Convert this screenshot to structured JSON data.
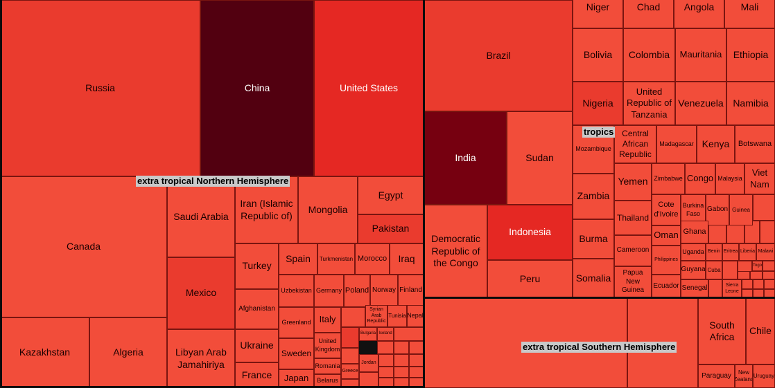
{
  "chart_data": {
    "type": "treemap",
    "groups": [
      {
        "name": "extra tropical Northern Hemisphere",
        "countries": [
          {
            "name": "Russia",
            "shade": 3
          },
          {
            "name": "China",
            "shade": 0
          },
          {
            "name": "United States",
            "shade": 2
          },
          {
            "name": "Canada",
            "shade": 4
          },
          {
            "name": "Saudi Arabia",
            "shade": 4
          },
          {
            "name": "Iran (Islamic Republic of)",
            "shade": 4
          },
          {
            "name": "Mongolia",
            "shade": 4
          },
          {
            "name": "Egypt",
            "shade": 4
          },
          {
            "name": "Pakistan",
            "shade": 3
          },
          {
            "name": "Mexico",
            "shade": 3
          },
          {
            "name": "Turkey",
            "shade": 4
          },
          {
            "name": "Spain",
            "shade": 4
          },
          {
            "name": "Turkmenistan",
            "shade": 4
          },
          {
            "name": "Morocco",
            "shade": 4
          },
          {
            "name": "Iraq",
            "shade": 4
          },
          {
            "name": "Afghanistan",
            "shade": 4
          },
          {
            "name": "Uzbekistan",
            "shade": 4
          },
          {
            "name": "Germany",
            "shade": 4
          },
          {
            "name": "Poland",
            "shade": 4
          },
          {
            "name": "Norway",
            "shade": 4
          },
          {
            "name": "Finland",
            "shade": 4
          },
          {
            "name": "Greenland",
            "shade": 4
          },
          {
            "name": "Italy",
            "shade": 4
          },
          {
            "name": "Syrian Arab Republic",
            "shade": 4
          },
          {
            "name": "Tunisia",
            "shade": 4
          },
          {
            "name": "Nepal",
            "shade": 4
          },
          {
            "name": "Kazakhstan",
            "shade": 4
          },
          {
            "name": "Algeria",
            "shade": 4
          },
          {
            "name": "Libyan Arab Jamahiriya",
            "shade": 4
          },
          {
            "name": "Ukraine",
            "shade": 4
          },
          {
            "name": "Sweden",
            "shade": 4
          },
          {
            "name": "United Kingdom",
            "shade": 4
          },
          {
            "name": "Bulgaria",
            "shade": 4
          },
          {
            "name": "Iceland",
            "shade": 4
          },
          {
            "name": "Romania",
            "shade": 4
          },
          {
            "name": "Jordan",
            "shade": 4
          },
          {
            "name": "Greece",
            "shade": 4
          },
          {
            "name": "France",
            "shade": 4
          },
          {
            "name": "Japan",
            "shade": 4
          },
          {
            "name": "Belarus",
            "shade": 4
          }
        ]
      },
      {
        "name": "tropics",
        "countries": [
          {
            "name": "Brazil",
            "shade": 3
          },
          {
            "name": "India",
            "shade": 1
          },
          {
            "name": "Sudan",
            "shade": 4
          },
          {
            "name": "Democratic Republic of the Congo",
            "shade": 4
          },
          {
            "name": "Indonesia",
            "shade": 2
          },
          {
            "name": "Peru",
            "shade": 4
          },
          {
            "name": "Niger",
            "shade": 4
          },
          {
            "name": "Chad",
            "shade": 4
          },
          {
            "name": "Angola",
            "shade": 4
          },
          {
            "name": "Mali",
            "shade": 4
          },
          {
            "name": "Bolivia",
            "shade": 4
          },
          {
            "name": "Colombia",
            "shade": 4
          },
          {
            "name": "Mauritania",
            "shade": 4
          },
          {
            "name": "Ethiopia",
            "shade": 4
          },
          {
            "name": "Nigeria",
            "shade": 3
          },
          {
            "name": "United Republic of Tanzania",
            "shade": 4
          },
          {
            "name": "Venezuela",
            "shade": 4
          },
          {
            "name": "Namibia",
            "shade": 4
          },
          {
            "name": "Mozambique",
            "shade": 4
          },
          {
            "name": "Central African Republic",
            "shade": 4
          },
          {
            "name": "Madagascar",
            "shade": 4
          },
          {
            "name": "Kenya",
            "shade": 4
          },
          {
            "name": "Botswana",
            "shade": 4
          },
          {
            "name": "Zambia",
            "shade": 4
          },
          {
            "name": "Yemen",
            "shade": 4
          },
          {
            "name": "Zimbabwe",
            "shade": 4
          },
          {
            "name": "Congo",
            "shade": 4
          },
          {
            "name": "Malaysia",
            "shade": 4
          },
          {
            "name": "Viet Nam",
            "shade": 4
          },
          {
            "name": "Thailand",
            "shade": 4
          },
          {
            "name": "Cote d'Ivoire",
            "shade": 4
          },
          {
            "name": "Burkina Faso",
            "shade": 4
          },
          {
            "name": "Gabon",
            "shade": 4
          },
          {
            "name": "Guinea",
            "shade": 4
          },
          {
            "name": "Burma",
            "shade": 4
          },
          {
            "name": "Oman",
            "shade": 4
          },
          {
            "name": "Ghana",
            "shade": 4
          },
          {
            "name": "Cameroon",
            "shade": 4
          },
          {
            "name": "Uganda",
            "shade": 4
          },
          {
            "name": "Benin",
            "shade": 4
          },
          {
            "name": "Eritrea",
            "shade": 4
          },
          {
            "name": "Liberia",
            "shade": 4
          },
          {
            "name": "Malawi",
            "shade": 4
          },
          {
            "name": "Philippines",
            "shade": 4
          },
          {
            "name": "Togo",
            "shade": 4
          },
          {
            "name": "Somalia",
            "shade": 4
          },
          {
            "name": "Papua New Guinea",
            "shade": 4
          },
          {
            "name": "Guyana",
            "shade": 4
          },
          {
            "name": "Cuba",
            "shade": 4
          },
          {
            "name": "Ecuador",
            "shade": 4
          },
          {
            "name": "Senegal",
            "shade": 4
          },
          {
            "name": "Sierra Leone",
            "shade": 4
          }
        ]
      },
      {
        "name": "extra tropical Southern Hemisphere",
        "countries": [
          {
            "name": "South Africa",
            "shade": 4
          },
          {
            "name": "Chile",
            "shade": 4
          },
          {
            "name": "Paraguay",
            "shade": 4
          },
          {
            "name": "New Zealand",
            "shade": 4
          },
          {
            "name": "Uruguay",
            "shade": 4
          }
        ]
      }
    ]
  },
  "colors": {
    "shades": [
      "#520010",
      "#760010",
      "#e52823",
      "#ea3b2e",
      "#f24d3a"
    ],
    "dark_text_on": 0,
    "light_text": "#ffffff",
    "dark_text": "#1a0000"
  }
}
